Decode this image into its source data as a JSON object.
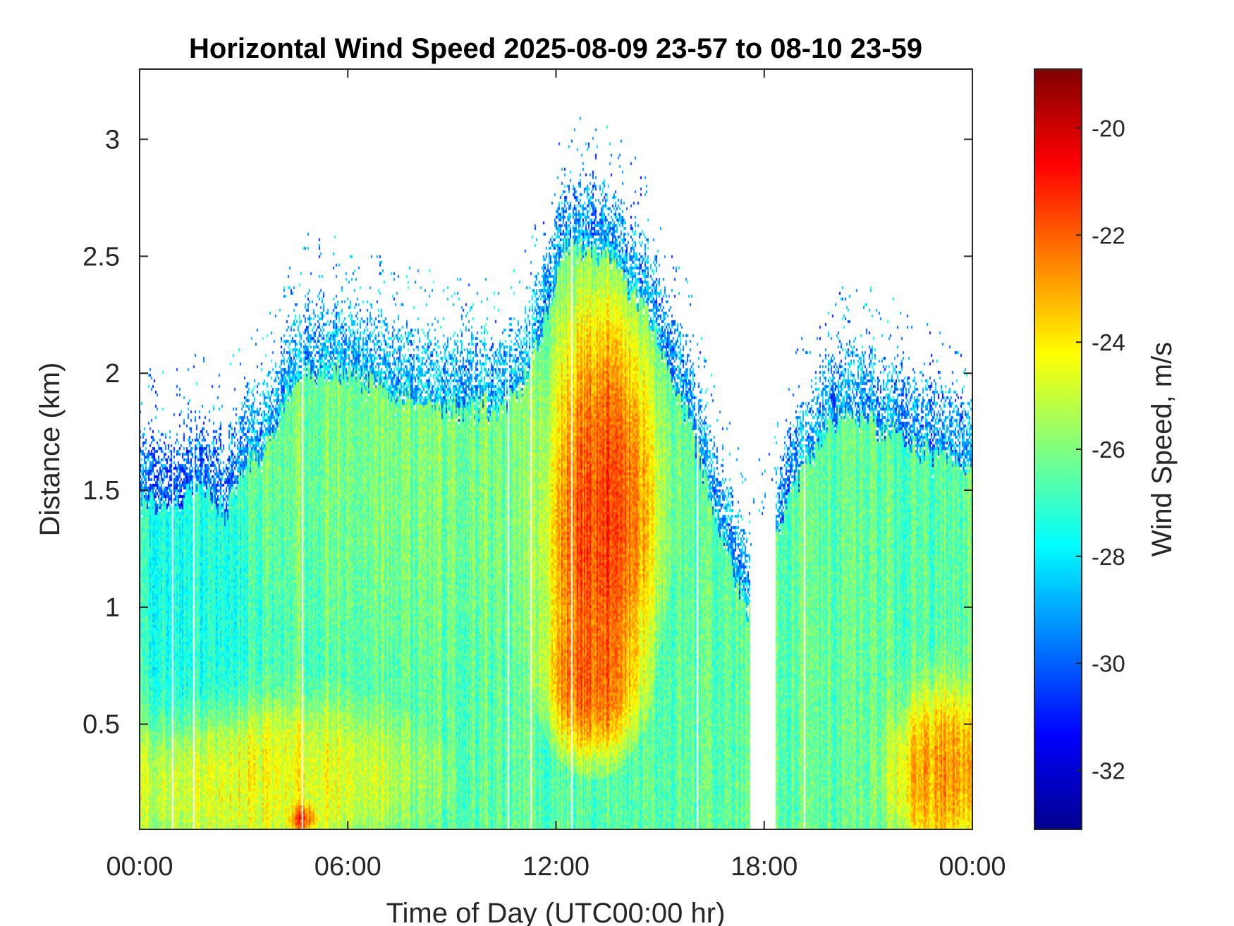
{
  "chart_data": {
    "type": "heatmap",
    "title": "Horizontal Wind Speed 2025-08-09 23-57 to 08-10 23-59",
    "xlabel": "Time of Day (UTC00:00 hr)",
    "ylabel": "Distance (km)",
    "colorbar_label": "Wind Speed, m/s",
    "colormap": "jet",
    "xlim_hours": [
      0,
      24
    ],
    "ylim_km": [
      0.05,
      3.3
    ],
    "clim": [
      -33.1,
      -18.9
    ],
    "x_ticks": [
      {
        "hour": 0,
        "label": "00:00"
      },
      {
        "hour": 6,
        "label": "06:00"
      },
      {
        "hour": 12,
        "label": "12:00"
      },
      {
        "hour": 18,
        "label": "18:00"
      },
      {
        "hour": 24,
        "label": "00:00"
      }
    ],
    "y_ticks": [
      {
        "km": 0.5,
        "label": "0.5"
      },
      {
        "km": 1,
        "label": "1"
      },
      {
        "km": 1.5,
        "label": "1.5"
      },
      {
        "km": 2,
        "label": "2"
      },
      {
        "km": 2.5,
        "label": "2.5"
      },
      {
        "km": 3,
        "label": "3"
      }
    ],
    "colorbar_ticks": [
      {
        "value": -32,
        "label": "-32"
      },
      {
        "value": -30,
        "label": "-30"
      },
      {
        "value": -28,
        "label": "-28"
      },
      {
        "value": -26,
        "label": "-26"
      },
      {
        "value": -24,
        "label": "-24"
      },
      {
        "value": -22,
        "label": "-22"
      },
      {
        "value": -20,
        "label": "-20"
      }
    ],
    "grid": false,
    "data_top_km_by_hour": [
      [
        0.0,
        1.75
      ],
      [
        1.0,
        1.75
      ],
      [
        1.8,
        1.82
      ],
      [
        2.5,
        1.7
      ],
      [
        3.0,
        1.9
      ],
      [
        3.6,
        1.95
      ],
      [
        4.5,
        2.3
      ],
      [
        6.0,
        2.3
      ],
      [
        7.5,
        2.2
      ],
      [
        9.0,
        2.15
      ],
      [
        10.5,
        2.15
      ],
      [
        11.2,
        2.3
      ],
      [
        11.8,
        2.6
      ],
      [
        12.3,
        2.85
      ],
      [
        13.5,
        2.8
      ],
      [
        14.8,
        2.5
      ],
      [
        15.6,
        2.2
      ],
      [
        16.3,
        1.85
      ],
      [
        17.0,
        1.5
      ],
      [
        17.6,
        1.25
      ],
      [
        18.3,
        1.55
      ],
      [
        18.8,
        1.8
      ],
      [
        19.5,
        2.0
      ],
      [
        20.3,
        2.15
      ],
      [
        21.5,
        2.05
      ],
      [
        22.8,
        1.95
      ],
      [
        24.0,
        1.9
      ]
    ],
    "speed_regions": [
      {
        "hours": [
          12.5,
          14.8
        ],
        "km": [
          1.0,
          2.2
        ],
        "core_hour": 13.2,
        "core_km": 1.45,
        "value_mps": -20.5
      },
      {
        "hours": [
          12.0,
          13.8
        ],
        "km": [
          0.45,
          0.9
        ],
        "core_hour": 13.0,
        "core_km": 0.7,
        "value_mps": -21.5
      },
      {
        "hours": [
          22.0,
          24.0
        ],
        "km": [
          0.05,
          0.6
        ],
        "value_mps": -22.0
      },
      {
        "hours": [
          4.4,
          5.0
        ],
        "km": [
          0.05,
          0.15
        ],
        "value_mps": -20.0
      },
      {
        "hours": [
          0.0,
          6.5
        ],
        "km": [
          0.05,
          0.5
        ],
        "value_mps": -24.0
      },
      {
        "hours": [
          0.0,
          3.0
        ],
        "km": [
          0.5,
          1.8
        ],
        "value_mps": -27.5
      },
      {
        "hours": [
          3.0,
          11.5
        ],
        "km": [
          1.2,
          2.3
        ],
        "value_mps": -26.0
      },
      {
        "hours": [
          18.3,
          24.0
        ],
        "km": [
          0.6,
          2.1
        ],
        "value_mps": -26.5
      }
    ]
  }
}
